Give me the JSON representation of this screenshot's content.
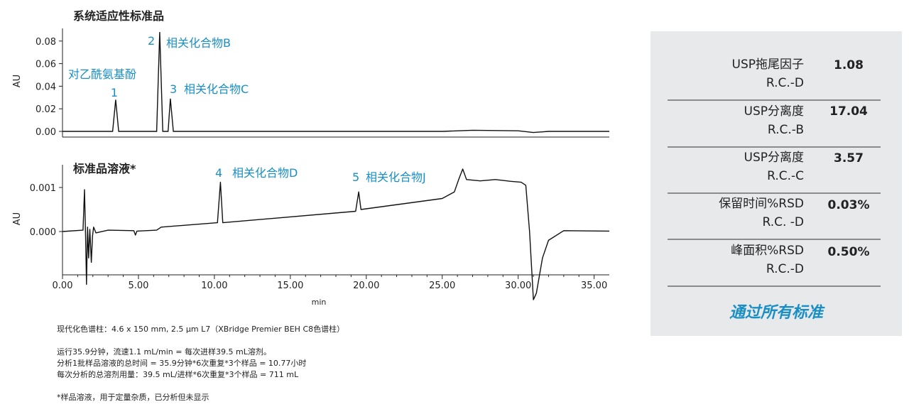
{
  "chart_data": [
    {
      "type": "line",
      "title": "系统适应性标准品",
      "ylabel": "AU",
      "xlim": [
        0,
        36
      ],
      "ylim": [
        -0.003,
        0.09
      ],
      "yticks": [
        "0.00",
        "0.02",
        "0.04",
        "0.06",
        "0.08"
      ],
      "peaks": [
        {
          "id": "1",
          "name": "对乙酰氨基酚",
          "x": 3.5,
          "y": 0.028
        },
        {
          "id": "2",
          "name": "相关化合物B",
          "x": 6.4,
          "y": 0.088
        },
        {
          "id": "3",
          "name": "相关化合物C",
          "x": 7.1,
          "y": 0.029
        }
      ],
      "baseline": [
        [
          0,
          0
        ],
        [
          3.3,
          0
        ],
        [
          3.5,
          0.028
        ],
        [
          3.7,
          0
        ],
        [
          6.2,
          0
        ],
        [
          6.4,
          0.088
        ],
        [
          6.6,
          0
        ],
        [
          6.95,
          0
        ],
        [
          7.1,
          0.029
        ],
        [
          7.3,
          0
        ],
        [
          25.0,
          0
        ],
        [
          27.0,
          0.001
        ],
        [
          30.0,
          0.0005
        ],
        [
          31.0,
          -0.001
        ],
        [
          32.0,
          0
        ],
        [
          36.0,
          0
        ]
      ]
    },
    {
      "type": "line",
      "title": "标准品溶液*",
      "ylabel": "AU",
      "xlabel": "min",
      "xlim": [
        0,
        36
      ],
      "ylim": [
        -0.00175,
        0.0014
      ],
      "yticks": [
        "0.000",
        "0.001"
      ],
      "xticks": [
        "0.00",
        "5.00",
        "10.00",
        "15.00",
        "20.00",
        "25.00",
        "30.00",
        "35.00"
      ],
      "peaks": [
        {
          "id": "4",
          "name": "相关化合物D",
          "x": 10.4,
          "y": 0.00112
        },
        {
          "id": "5",
          "name": "相关化合物J",
          "x": 19.5,
          "y": 0.0009
        }
      ],
      "trace": [
        [
          0,
          0
        ],
        [
          1.35,
          3e-05
        ],
        [
          1.45,
          0.00095
        ],
        [
          1.52,
          -0.0001
        ],
        [
          1.58,
          -0.0012
        ],
        [
          1.65,
          0.0001
        ],
        [
          1.72,
          -0.0006
        ],
        [
          1.8,
          5e-05
        ],
        [
          1.9,
          -0.0007
        ],
        [
          1.98,
          -0.0001
        ],
        [
          2.05,
          0.0001
        ],
        [
          2.2,
          -3e-05
        ],
        [
          3.0,
          3e-05
        ],
        [
          4.7,
          2e-05
        ],
        [
          4.8,
          -8e-05
        ],
        [
          4.9,
          1e-05
        ],
        [
          6.2,
          3e-05
        ],
        [
          6.5,
          0.0001
        ],
        [
          10.2,
          0.0002
        ],
        [
          10.4,
          0.00112
        ],
        [
          10.55,
          0.0002
        ],
        [
          19.3,
          0.00046
        ],
        [
          19.5,
          0.0009
        ],
        [
          19.65,
          0.0005
        ],
        [
          25.0,
          0.00075
        ],
        [
          25.8,
          0.0009
        ],
        [
          26.1,
          0.0012
        ],
        [
          26.35,
          0.00142
        ],
        [
          26.6,
          0.00118
        ],
        [
          27.5,
          0.00115
        ],
        [
          28.5,
          0.00118
        ],
        [
          29.5,
          0.00114
        ],
        [
          30.2,
          0.00112
        ],
        [
          30.5,
          0.00105
        ],
        [
          30.75,
          0.0
        ],
        [
          31.0,
          -0.00155
        ],
        [
          31.2,
          -0.0014
        ],
        [
          31.6,
          -0.0006
        ],
        [
          32.0,
          -0.0002
        ],
        [
          33.0,
          2e-05
        ],
        [
          36.0,
          1e-05
        ]
      ]
    }
  ],
  "notes": {
    "column": "现代化色谱柱：4.6 x 150 mm, 2.5 µm L7（XBridge Premier BEH C8色谱柱）",
    "run": "运行35.9分钟，流速1.1 mL/min = 每次进样39.5 mL溶剂。",
    "total_time": "分析1批样品溶液的总时间 = 35.9分钟*6次重复*3个样品 = 10.77小时",
    "solvent": "每次分析的总溶剂用量：39.5 mL/进样*6次重复*3个样品 = 711 mL",
    "footnote": "*样品溶液，用于定量杂质，已分析但未显示"
  },
  "summary": {
    "rows": [
      {
        "label1": "USP拖尾因子",
        "label2": "R.C.-D",
        "value": "1.08"
      },
      {
        "label1": "USP分离度",
        "label2": "R.C.-B",
        "value": "17.04"
      },
      {
        "label1": "USP分离度",
        "label2": "R.C.-C",
        "value": "3.57"
      },
      {
        "label1": "保留时间%RSD",
        "label2": "R.C. -D",
        "value": "0.03%"
      },
      {
        "label1": "峰面积%RSD",
        "label2": "R.C.-D",
        "value": "0.50%"
      }
    ],
    "pass_text": "通过所有标准",
    "pass_color": "#1a8fc4",
    "panel_color": "#e8e9eb"
  }
}
